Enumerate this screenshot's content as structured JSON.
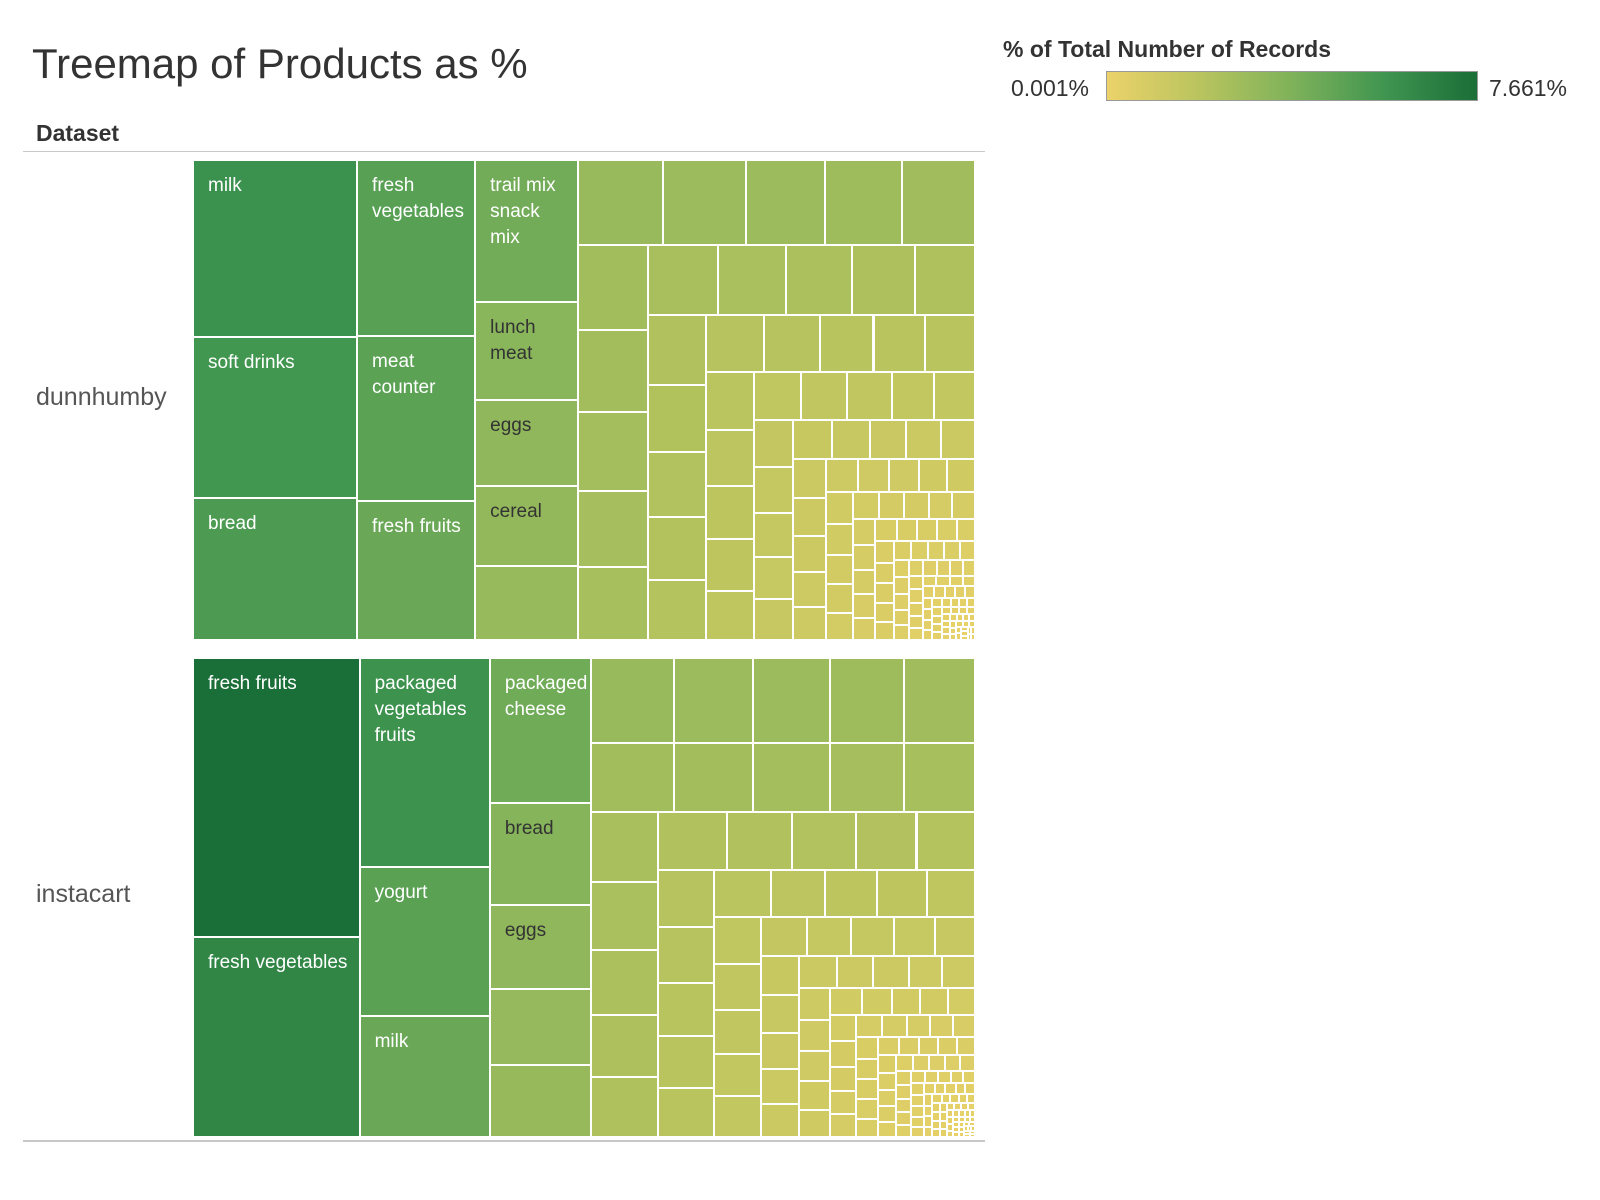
{
  "title": "Treemap of Products as %",
  "column_header": "Dataset",
  "legend": {
    "title": "% of Total Number of Records",
    "min_label": "0.001%",
    "max_label": "7.661%",
    "min_color": "#ecd26a",
    "max_color": "#1a6e37"
  },
  "chart_data": {
    "type": "treemap",
    "measure": "% of Total Number of Records",
    "color_range": [
      0.001,
      7.661
    ],
    "groups": [
      {
        "name": "dunnhumby",
        "labeled_items": [
          {
            "label": "milk",
            "value": 4.6
          },
          {
            "label": "soft drinks",
            "value": 4.2
          },
          {
            "label": "bread",
            "value": 3.7
          },
          {
            "label": "fresh\nvegetables",
            "value": 3.3
          },
          {
            "label": "meat counter",
            "value": 3.1
          },
          {
            "label": "fresh fruits",
            "value": 2.6
          },
          {
            "label": "trail mix\nsnack mix",
            "value": 2.3
          },
          {
            "label": "lunch meat",
            "value": 1.6
          },
          {
            "label": "eggs",
            "value": 1.4
          },
          {
            "label": "cereal",
            "value": 1.3
          }
        ]
      },
      {
        "name": "instacart",
        "labeled_items": [
          {
            "label": "fresh fruits",
            "value": 7.661
          },
          {
            "label": "fresh vegetables",
            "value": 5.5
          },
          {
            "label": "packaged\nvegetables\nfruits",
            "value": 4.5
          },
          {
            "label": "yogurt",
            "value": 3.2
          },
          {
            "label": "milk",
            "value": 2.6
          },
          {
            "label": "packaged\ncheese",
            "value": 2.4
          },
          {
            "label": "bread",
            "value": 1.7
          },
          {
            "label": "eggs",
            "value": 1.4
          }
        ]
      }
    ]
  }
}
